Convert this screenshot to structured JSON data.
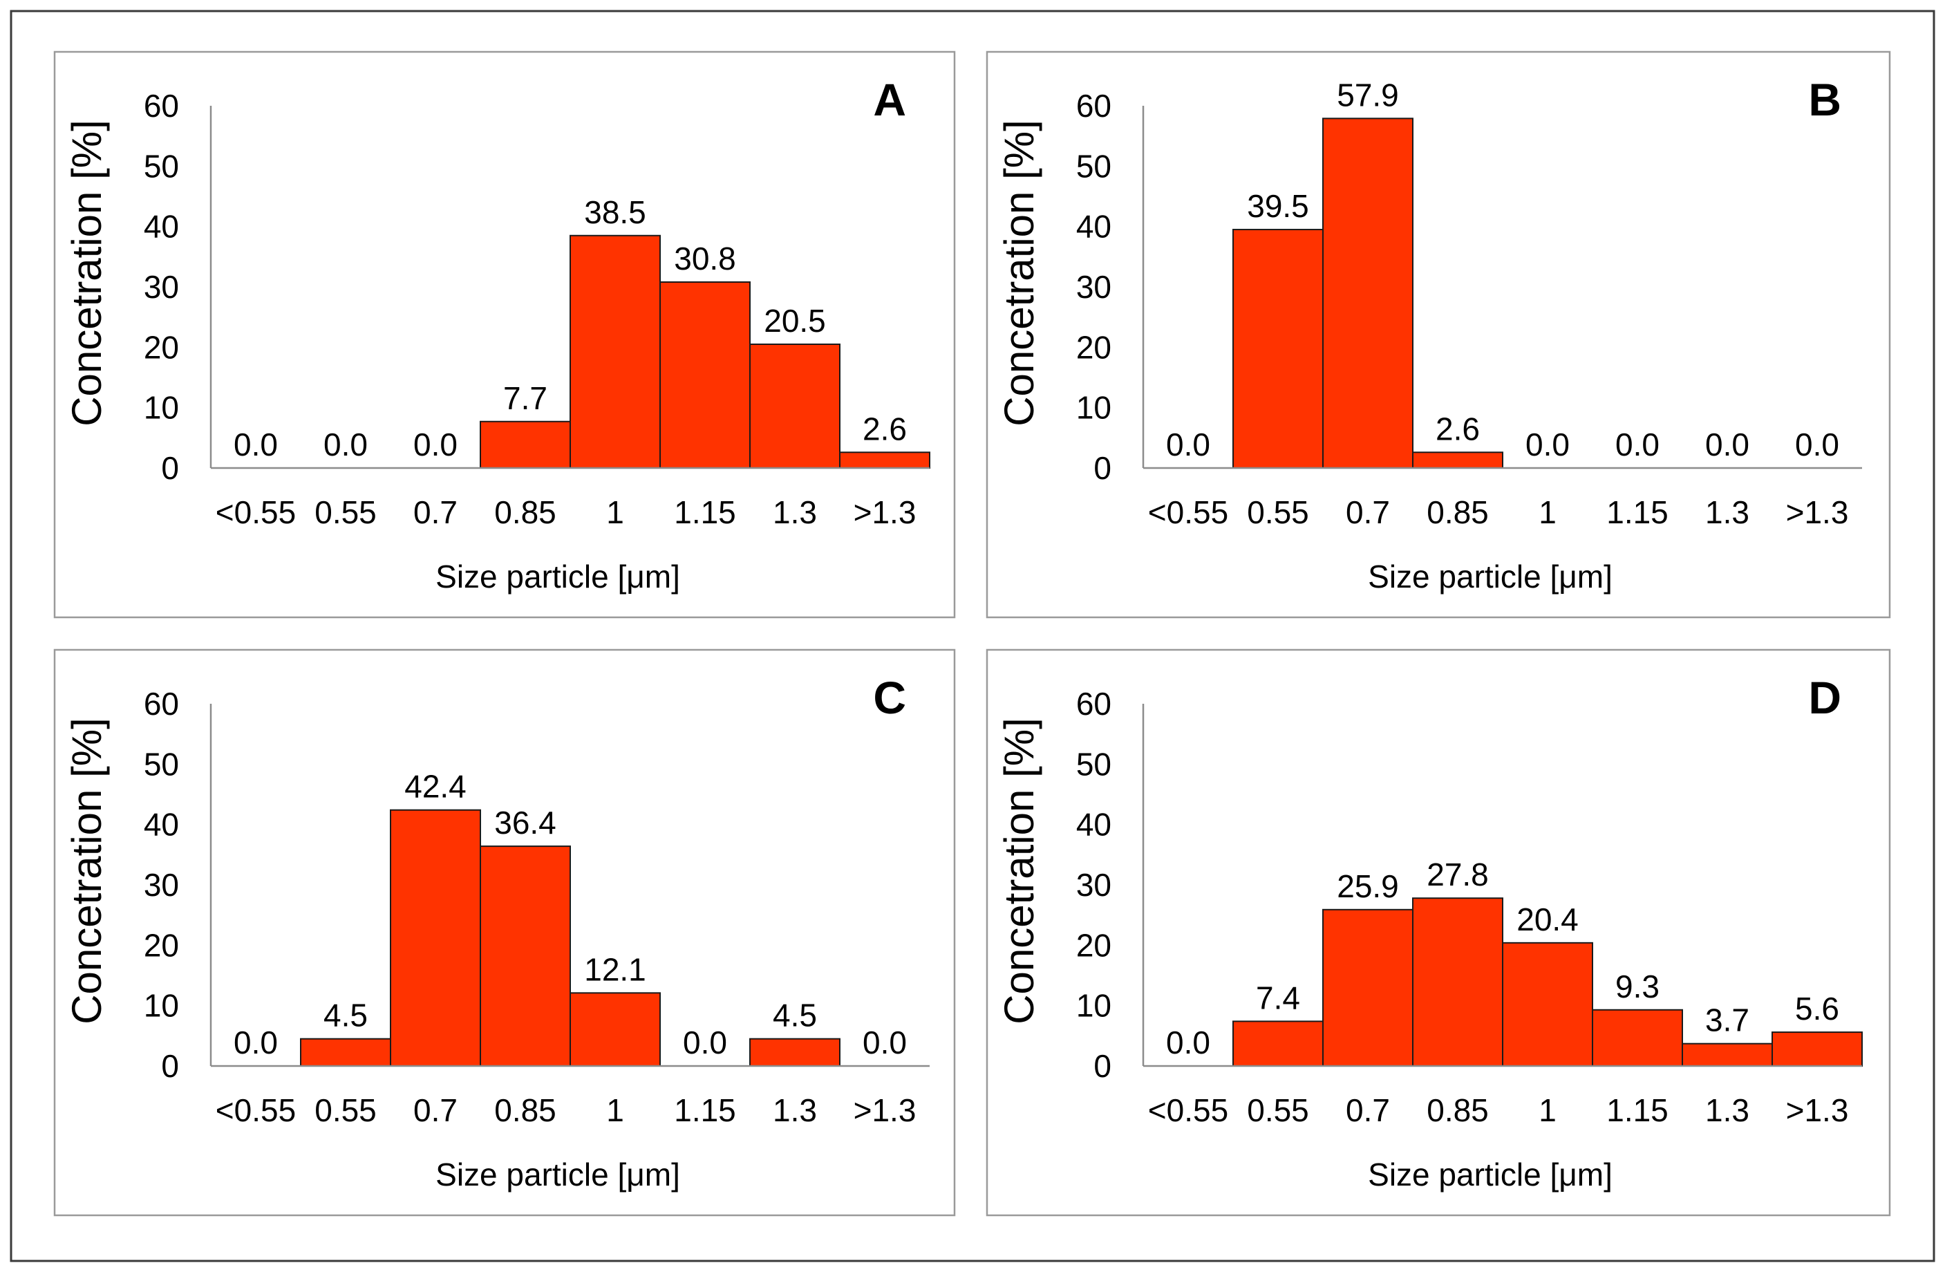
{
  "figure": {
    "bar_color": "#ff3300",
    "bar_stroke": "#1a1a1a",
    "axis_color": "#8c8c8c",
    "panel_border_color": "#9a9a9a",
    "outer_border_color": "#3a3a3a"
  },
  "chart_data": [
    {
      "panel": "A",
      "type": "bar",
      "categories": [
        "<0.55",
        "0.55",
        "0.7",
        "0.85",
        "1",
        "1.15",
        "1.3",
        ">1.3"
      ],
      "values": [
        0.0,
        0.0,
        0.0,
        7.7,
        38.5,
        30.8,
        20.5,
        2.6
      ],
      "data_labels": [
        "0.0",
        "0.0",
        "0.0",
        "7.7",
        "38.5",
        "30.8",
        "20.5",
        "2.6"
      ],
      "yticks": [
        "0",
        "10",
        "20",
        "30",
        "40",
        "50",
        "60"
      ],
      "ylim": [
        0,
        60
      ],
      "xlabel": "Size particle [μm]",
      "ylabel": "Concetration [%]"
    },
    {
      "panel": "B",
      "type": "bar",
      "categories": [
        "<0.55",
        "0.55",
        "0.7",
        "0.85",
        "1",
        "1.15",
        "1.3",
        ">1.3"
      ],
      "values": [
        0.0,
        39.5,
        57.9,
        2.6,
        0.0,
        0.0,
        0.0,
        0.0
      ],
      "data_labels": [
        "0.0",
        "39.5",
        "57.9",
        "2.6",
        "0.0",
        "0.0",
        "0.0",
        "0.0"
      ],
      "yticks": [
        "0",
        "10",
        "20",
        "30",
        "40",
        "50",
        "60"
      ],
      "ylim": [
        0,
        60
      ],
      "xlabel": "Size particle [μm]",
      "ylabel": "Concetration [%]"
    },
    {
      "panel": "C",
      "type": "bar",
      "categories": [
        "<0.55",
        "0.55",
        "0.7",
        "0.85",
        "1",
        "1.15",
        "1.3",
        ">1.3"
      ],
      "values": [
        0.0,
        4.5,
        42.4,
        36.4,
        12.1,
        0.0,
        4.5,
        0.0
      ],
      "data_labels": [
        "0.0",
        "4.5",
        "42.4",
        "36.4",
        "12.1",
        "0.0",
        "4.5",
        "0.0"
      ],
      "yticks": [
        "0",
        "10",
        "20",
        "30",
        "40",
        "50",
        "60"
      ],
      "ylim": [
        0,
        60
      ],
      "xlabel": "Size particle [μm]",
      "ylabel": "Concetration [%]"
    },
    {
      "panel": "D",
      "type": "bar",
      "categories": [
        "<0.55",
        "0.55",
        "0.7",
        "0.85",
        "1",
        "1.15",
        "1.3",
        ">1.3"
      ],
      "values": [
        0.0,
        7.4,
        25.9,
        27.8,
        20.4,
        9.3,
        3.7,
        5.6
      ],
      "data_labels": [
        "0.0",
        "7.4",
        "25.9",
        "27.8",
        "20.4",
        "9.3",
        "3.7",
        "5.6"
      ],
      "yticks": [
        "0",
        "10",
        "20",
        "30",
        "40",
        "50",
        "60"
      ],
      "ylim": [
        0,
        60
      ],
      "xlabel": "Size particle [μm]",
      "ylabel": "Concetration [%]"
    }
  ]
}
